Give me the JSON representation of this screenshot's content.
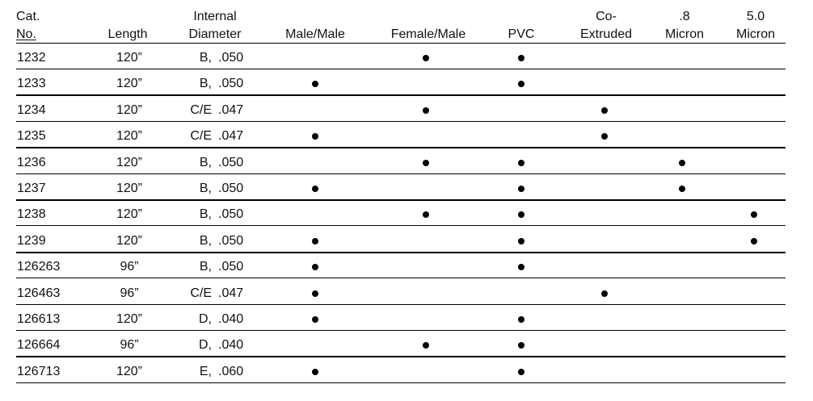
{
  "table": {
    "columns": [
      {
        "key": "cat",
        "line1": "Cat.",
        "line2": "No."
      },
      {
        "key": "len",
        "line1": "",
        "line2": "Length"
      },
      {
        "key": "id",
        "line1": "Internal",
        "line2": "Diameter"
      },
      {
        "key": "mm",
        "line1": "",
        "line2": "Male/Male"
      },
      {
        "key": "fm",
        "line1": "",
        "line2": "Female/Male"
      },
      {
        "key": "pvc",
        "line1": "",
        "line2": "PVC"
      },
      {
        "key": "co",
        "line1": "Co-",
        "line2": "Extruded"
      },
      {
        "key": "m08",
        "line1": ".8",
        "line2": "Micron"
      },
      {
        "key": "m50",
        "line1": "5.0",
        "line2": "Micron"
      }
    ],
    "rows": [
      {
        "cat": "1232",
        "length": "120”",
        "id_code": "B,",
        "id_value": ".050",
        "mm": false,
        "fm": true,
        "pvc": true,
        "co": false,
        "m08": false,
        "m50": false
      },
      {
        "cat": "1233",
        "length": "120”",
        "id_code": "B,",
        "id_value": ".050",
        "mm": true,
        "fm": false,
        "pvc": true,
        "co": false,
        "m08": false,
        "m50": false
      },
      {
        "cat": "1234",
        "length": "120”",
        "id_code": "C/E",
        "id_value": ".047",
        "mm": false,
        "fm": true,
        "pvc": false,
        "co": true,
        "m08": false,
        "m50": false
      },
      {
        "cat": "1235",
        "length": "120”",
        "id_code": "C/E",
        "id_value": ".047",
        "mm": true,
        "fm": false,
        "pvc": false,
        "co": true,
        "m08": false,
        "m50": false
      },
      {
        "cat": "1236",
        "length": "120”",
        "id_code": "B,",
        "id_value": ".050",
        "mm": false,
        "fm": true,
        "pvc": true,
        "co": false,
        "m08": true,
        "m50": false
      },
      {
        "cat": "1237",
        "length": "120”",
        "id_code": "B,",
        "id_value": ".050",
        "mm": true,
        "fm": false,
        "pvc": true,
        "co": false,
        "m08": true,
        "m50": false
      },
      {
        "cat": "1238",
        "length": "120”",
        "id_code": "B,",
        "id_value": ".050",
        "mm": false,
        "fm": true,
        "pvc": true,
        "co": false,
        "m08": false,
        "m50": true
      },
      {
        "cat": "1239",
        "length": "120”",
        "id_code": "B,",
        "id_value": ".050",
        "mm": true,
        "fm": false,
        "pvc": true,
        "co": false,
        "m08": false,
        "m50": true
      },
      {
        "cat": "126263",
        "length": "96”",
        "id_code": "B,",
        "id_value": ".050",
        "mm": true,
        "fm": false,
        "pvc": true,
        "co": false,
        "m08": false,
        "m50": false
      },
      {
        "cat": "126463",
        "length": "96”",
        "id_code": "C/E",
        "id_value": ".047",
        "mm": true,
        "fm": false,
        "pvc": false,
        "co": true,
        "m08": false,
        "m50": false
      },
      {
        "cat": "126613",
        "length": "120”",
        "id_code": "D,",
        "id_value": ".040",
        "mm": true,
        "fm": false,
        "pvc": true,
        "co": false,
        "m08": false,
        "m50": false
      },
      {
        "cat": "126664",
        "length": "96”",
        "id_code": "D,",
        "id_value": ".040",
        "mm": false,
        "fm": true,
        "pvc": true,
        "co": false,
        "m08": false,
        "m50": false
      },
      {
        "cat": "126713",
        "length": "120”",
        "id_code": "E,",
        "id_value": ".060",
        "mm": true,
        "fm": false,
        "pvc": true,
        "co": false,
        "m08": false,
        "m50": false
      }
    ]
  }
}
